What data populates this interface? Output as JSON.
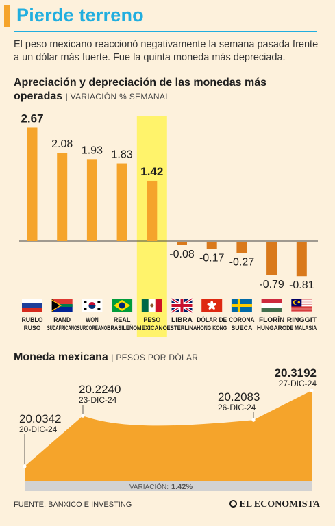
{
  "header": {
    "title": "Pierde terreno",
    "intro_line1": "El peso mexicano reaccionó negativamente la semana pasada frente",
    "intro_line2": "a un dólar más fuerte. Fue la quinta moneda más depreciada."
  },
  "colors": {
    "accent_blue": "#21aedf",
    "orange": "#f5a42b",
    "orange_dark": "#d9791b",
    "highlight": "#fff36b",
    "background": "#fdf1dc"
  },
  "chart_data": [
    {
      "type": "bar",
      "title_line1": "Apreciación y depreciación de las monedas más",
      "title_line2": "operadas",
      "subtitle": "VARIACIÓN % SEMANAL",
      "categories": [
        {
          "line1": "RUBLO",
          "line2": "RUSO",
          "flag": "russia-flag-icon"
        },
        {
          "line1": "RAND",
          "line2": "SUDAFRICANO",
          "flag": "south-africa-flag-icon"
        },
        {
          "line1": "WON",
          "line2": "SURCOREANO",
          "flag": "south-korea-flag-icon"
        },
        {
          "line1": "REAL",
          "line2": "BRASILEÑO",
          "flag": "brazil-flag-icon"
        },
        {
          "line1": "PESO",
          "line2": "MEXICANO",
          "flag": "mexico-flag-icon"
        },
        {
          "line1": "LIBRA",
          "line2": "ESTERLINA",
          "flag": "united-kingdom-flag-icon"
        },
        {
          "line1": "DÓLAR DE",
          "line2": "HONG KONG",
          "flag": "hong-kong-flag-icon"
        },
        {
          "line1": "CORONA",
          "line2": "SUECA",
          "flag": "sweden-flag-icon"
        },
        {
          "line1": "FLORÍN",
          "line2": "HÚNGARO",
          "flag": "hungary-flag-icon"
        },
        {
          "line1": "RINGGIT",
          "line2": "DE MALASIA",
          "flag": "malaysia-flag-icon"
        }
      ],
      "values": [
        2.67,
        2.08,
        1.93,
        1.83,
        1.42,
        -0.08,
        -0.17,
        -0.27,
        -0.79,
        -0.81
      ],
      "value_labels": [
        "2.67",
        "2.08",
        "1.93",
        "1.83",
        "1.42",
        "-0.08",
        "-0.17",
        "-0.27",
        "-0.79",
        "-0.81"
      ],
      "highlighted_index": 4
    },
    {
      "type": "area",
      "title": "Moneda mexicana",
      "subtitle": "PESOS POR DÓLAR",
      "points": [
        {
          "date": "20-DIC-24",
          "value": 20.0342,
          "label": "20.0342"
        },
        {
          "date": "23-DIC-24",
          "value": 20.224,
          "label": "20.2240"
        },
        {
          "date": "26-DIC-24",
          "value": 20.2083,
          "label": "20.2083"
        },
        {
          "date": "27-DIC-24",
          "value": 20.3192,
          "label": "20.3192"
        }
      ],
      "variation_label": "VARIACIÓN:",
      "variation_value": "1.42%"
    }
  ],
  "footer": {
    "source": "FUENTE: BANXICO E INVESTING",
    "brand": "EL ECONOMISTA"
  }
}
